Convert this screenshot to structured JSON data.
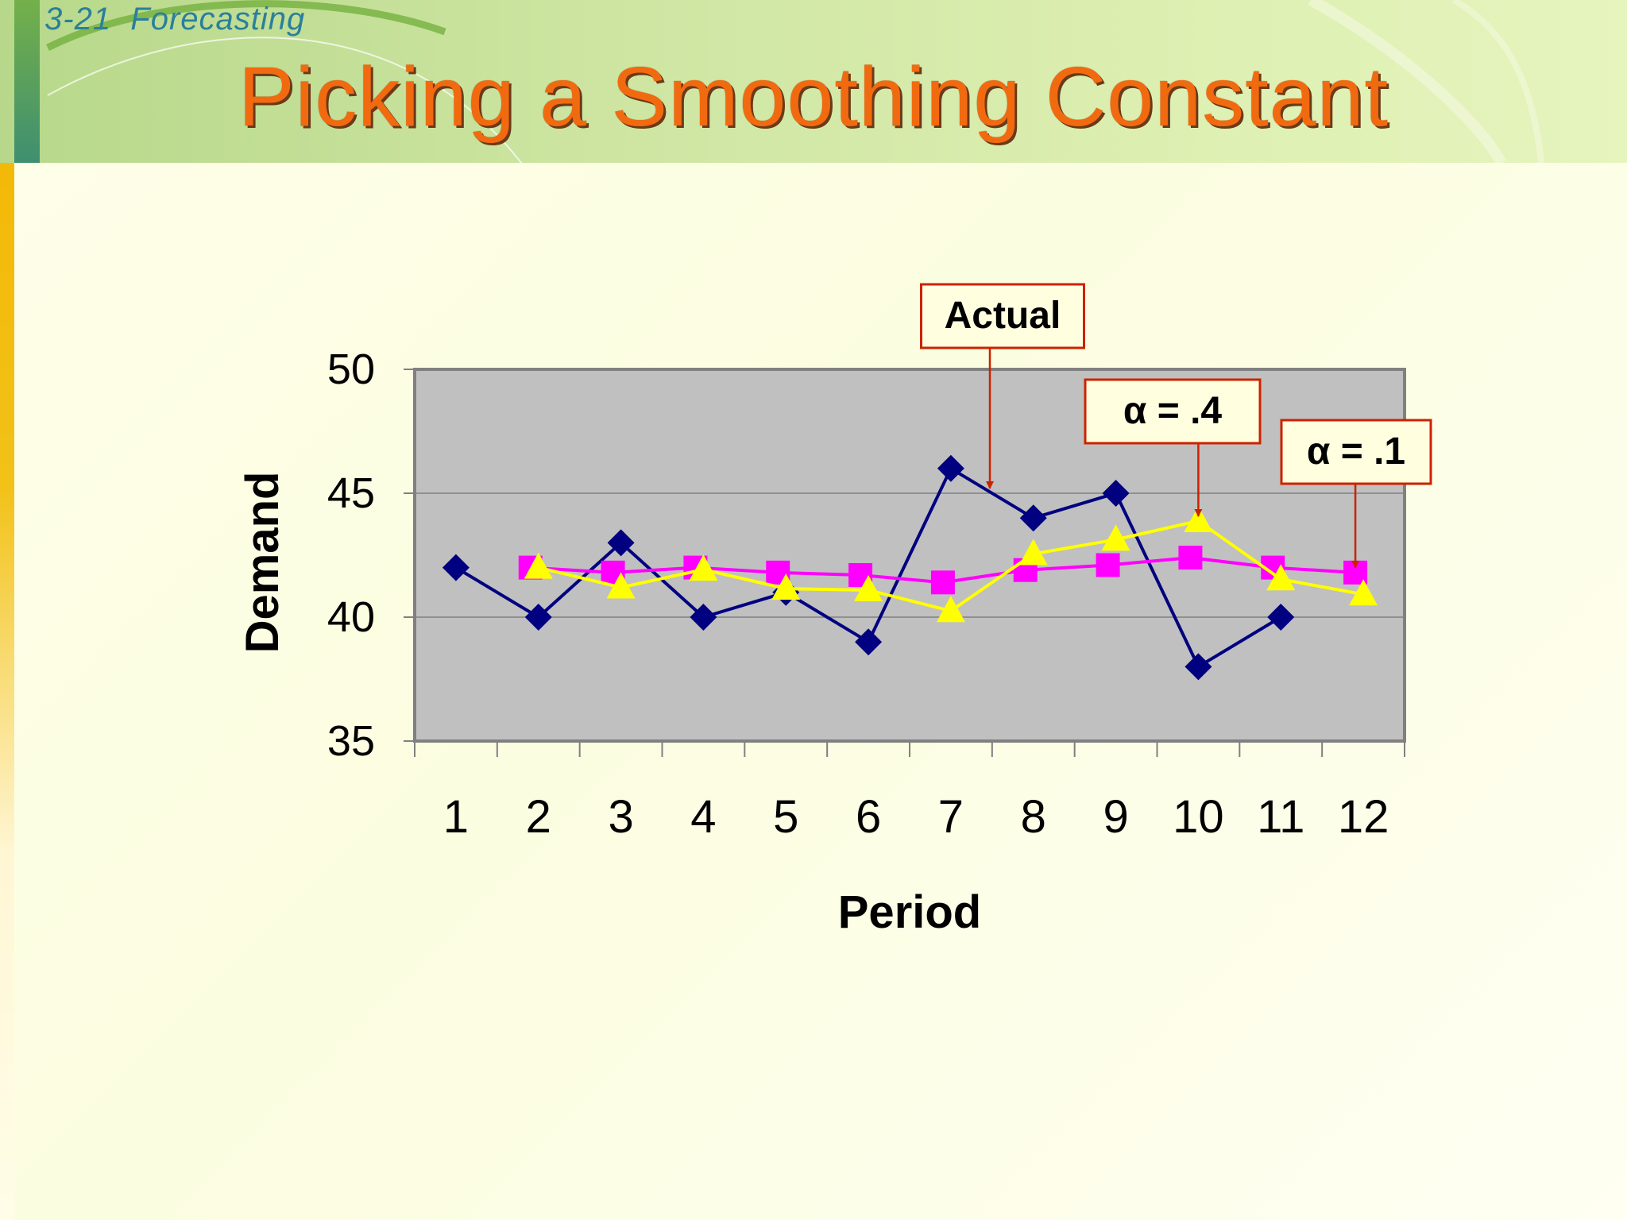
{
  "header": {
    "slide_number": "3-21  Forecasting",
    "title": "Picking a Smoothing Constant"
  },
  "chart_data": {
    "type": "line",
    "xlabel": "Period",
    "ylabel": "Demand",
    "ylim": [
      35,
      50
    ],
    "yticks": [
      35,
      40,
      45,
      50
    ],
    "categories": [
      "1",
      "2",
      "3",
      "4",
      "5",
      "6",
      "7",
      "8",
      "9",
      "10",
      "11",
      "12"
    ],
    "grid": "horizontal",
    "series": [
      {
        "name": "Actual",
        "color": "#000080",
        "marker": "diamond",
        "values": [
          42,
          40,
          43,
          40,
          41,
          39,
          46,
          44,
          45,
          38,
          40,
          null
        ]
      },
      {
        "name": "α = .4",
        "color": "#ffff00",
        "marker": "triangle",
        "values": [
          null,
          42,
          41.2,
          41.92,
          41.15,
          41.09,
          40.25,
          42.55,
          43.13,
          43.88,
          41.53,
          40.92
        ]
      },
      {
        "name": "α = .1",
        "color": "#ff00ff",
        "marker": "square",
        "values": [
          null,
          42,
          41.8,
          42.0,
          41.8,
          41.7,
          41.4,
          41.9,
          42.1,
          42.4,
          42.0,
          41.8
        ]
      }
    ],
    "annotations": [
      {
        "text": "Actual",
        "series": 0,
        "point": 7.5
      },
      {
        "text": "α = .4",
        "series": 1,
        "point": 10
      },
      {
        "text": "α = .1",
        "series": 2,
        "point": 12
      }
    ],
    "colors": {
      "plot_area": "#c0c0c0",
      "plot_border": "#808080",
      "gridline": "#808080",
      "annotation_border": "#cc2200",
      "annotation_fill": "#ffffe0"
    }
  }
}
